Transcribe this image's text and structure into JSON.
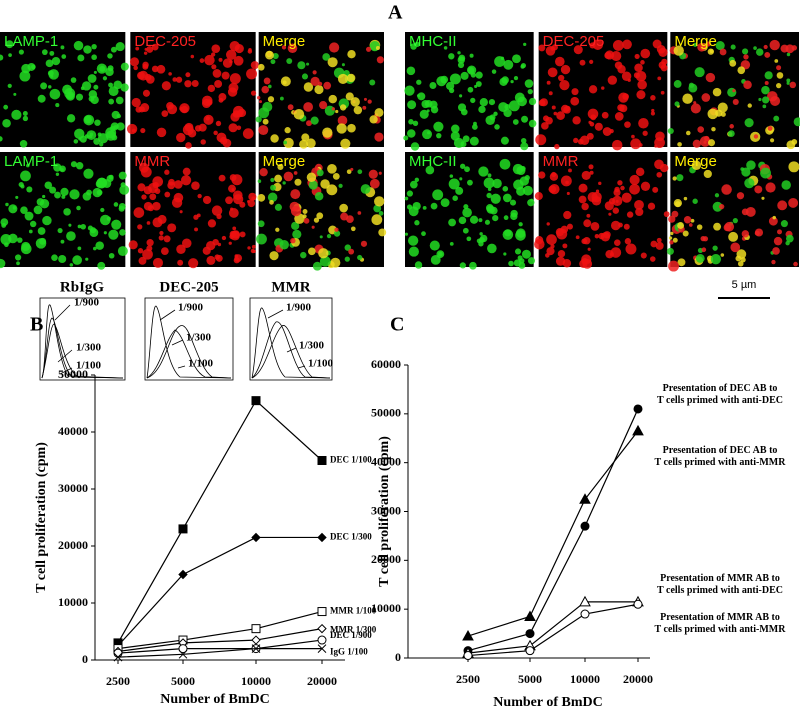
{
  "panel_labels": [
    "A",
    "B",
    "C"
  ],
  "microscopy": {
    "left": [
      [
        "LAMP-1",
        "DEC-205",
        "Merge"
      ],
      [
        "LAMP-1",
        "MMR",
        "Merge"
      ]
    ],
    "right": [
      [
        "MHC-II",
        "DEC-205",
        "Merge"
      ],
      [
        "MHC-II",
        "MMR",
        "Merge"
      ]
    ],
    "scale_bar": "5 µm"
  },
  "histograms": {
    "titles": [
      "RbIgG",
      "DEC-205",
      "MMR"
    ],
    "dilutions": [
      "1/900",
      "1/300",
      "1/100"
    ]
  },
  "chart_data": [
    {
      "type": "line",
      "x_label": "Number of BmDC",
      "y_label": "T cell proliferation (cpm)",
      "categories": [
        "2500",
        "5000",
        "10000",
        "20000"
      ],
      "ylim": [
        0,
        50000
      ],
      "yticks": [
        0,
        10000,
        20000,
        30000,
        40000,
        50000
      ],
      "series": [
        {
          "name": "DEC 1/100",
          "color": "#000000",
          "marker": "square",
          "filled": true,
          "values": [
            3000,
            23000,
            45500,
            35000
          ]
        },
        {
          "name": "DEC 1/300",
          "color": "#000000",
          "marker": "diamond",
          "filled": true,
          "values": [
            2500,
            15000,
            21500,
            21500
          ]
        },
        {
          "name": "MMR 1/100",
          "color": "#000000",
          "marker": "square",
          "filled": false,
          "values": [
            2000,
            3500,
            5500,
            8500
          ]
        },
        {
          "name": "MMR 1/300",
          "color": "#000000",
          "marker": "diamond",
          "filled": false,
          "values": [
            1500,
            3000,
            3500,
            5500
          ]
        },
        {
          "name": "DEC 1/900",
          "color": "#000000",
          "marker": "circle",
          "filled": false,
          "values": [
            1200,
            2000,
            2000,
            3500
          ]
        },
        {
          "name": "IgG 1/100",
          "color": "#000000",
          "marker": "x",
          "filled": false,
          "values": [
            500,
            1000,
            2000,
            2000
          ]
        }
      ]
    },
    {
      "type": "line",
      "x_label": "Number of BmDC",
      "y_label": "T cell proliferation (cpm)",
      "categories": [
        "2500",
        "5000",
        "10000",
        "20000"
      ],
      "ylim": [
        0,
        60000
      ],
      "yticks": [
        0,
        10000,
        20000,
        30000,
        40000,
        50000,
        60000
      ],
      "series": [
        {
          "name": "Presentation of DEC AB to\nT cells primed with anti-DEC",
          "color": "#000000",
          "marker": "circle",
          "filled": true,
          "values": [
            1500,
            5000,
            27000,
            51000
          ]
        },
        {
          "name": "Presentation of DEC AB to\nT cells primed with anti-MMR",
          "color": "#000000",
          "marker": "triangle",
          "filled": true,
          "values": [
            4500,
            8500,
            32500,
            46500
          ]
        },
        {
          "name": "Presentation of MMR AB to\nT cells primed with anti-DEC",
          "color": "#000000",
          "marker": "triangle",
          "filled": false,
          "values": [
            1000,
            2500,
            11500,
            11500
          ]
        },
        {
          "name": "Presentation of MMR AB to\nT cells primed with anti-MMR",
          "color": "#000000",
          "marker": "circle",
          "filled": false,
          "values": [
            500,
            1500,
            9000,
            11000
          ]
        }
      ]
    }
  ]
}
